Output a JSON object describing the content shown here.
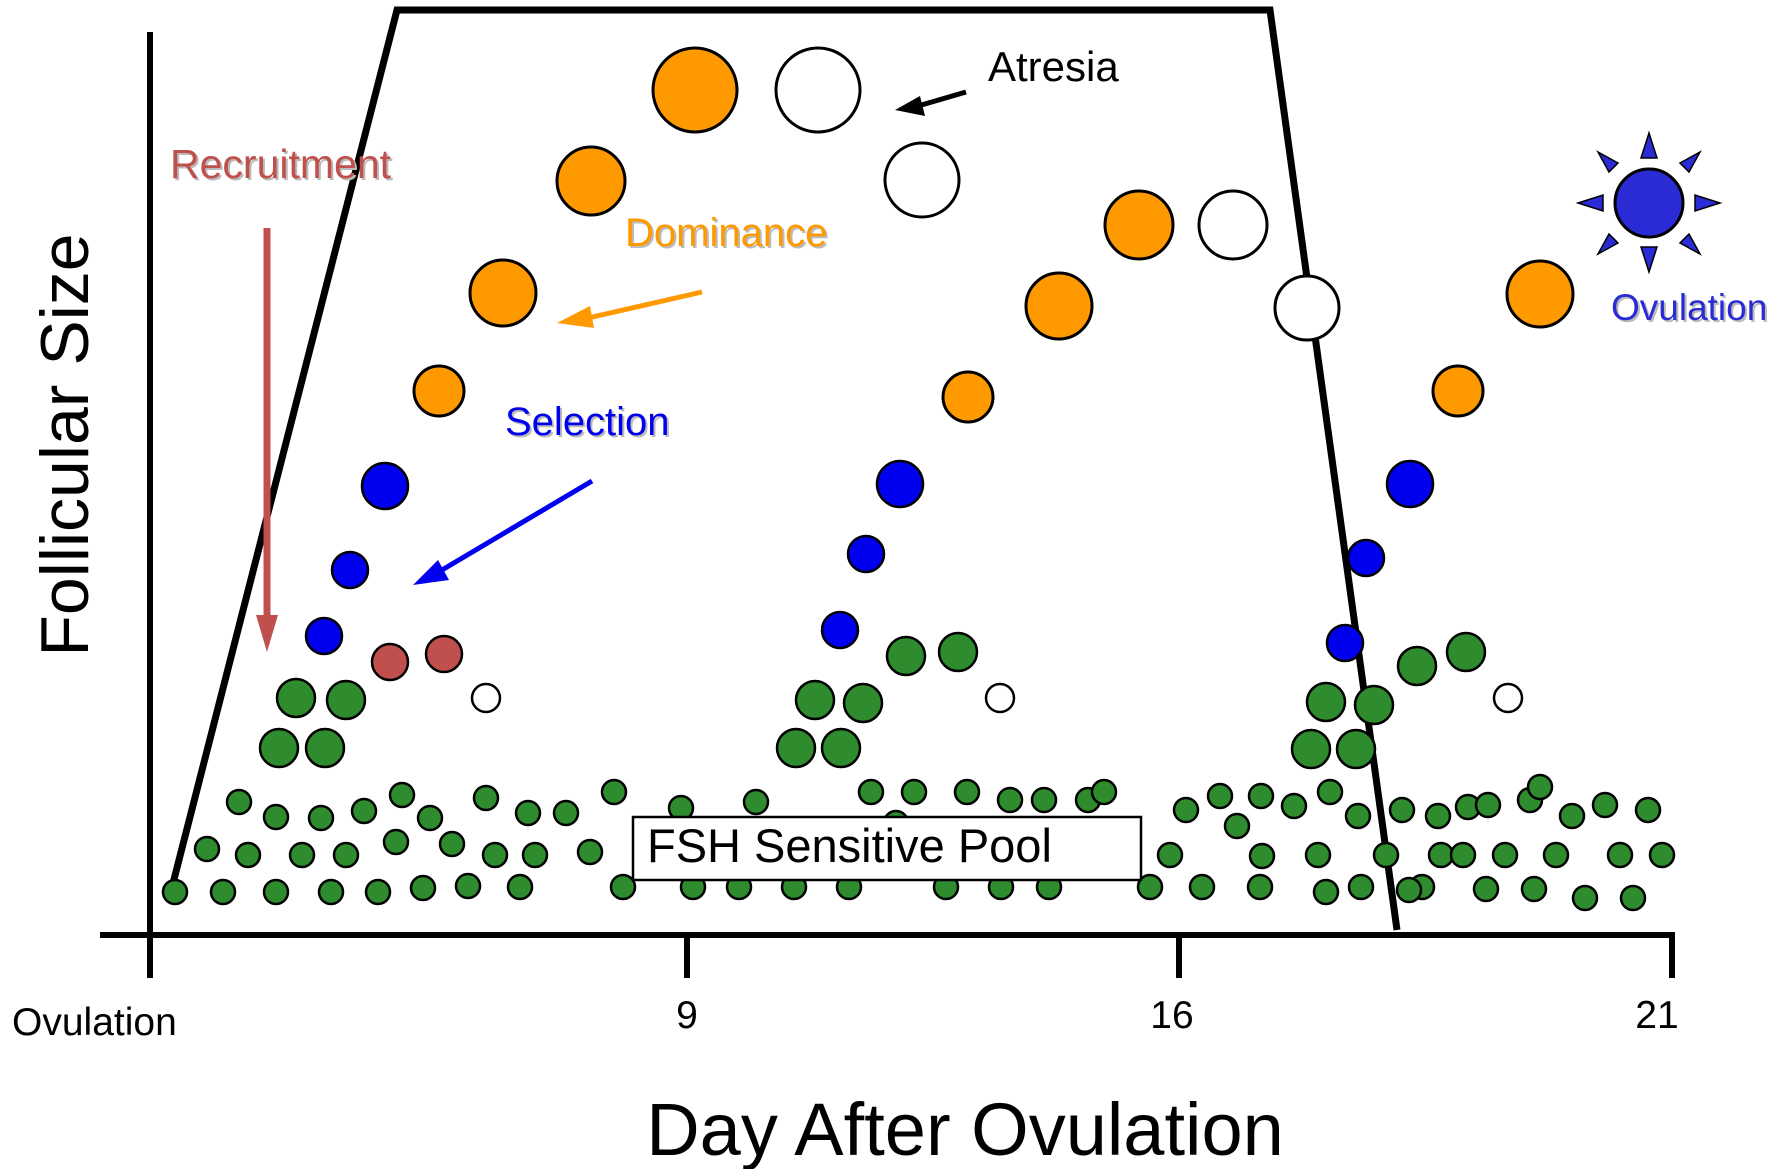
{
  "axes": {
    "y_label": "Follicular Size",
    "x_label": "Day After Ovulation",
    "x_ticks": [
      "Ovulation",
      "9",
      "16",
      "21"
    ]
  },
  "labels": {
    "recruitment": "Recruitment",
    "dominance": "Dominance",
    "selection": "Selection",
    "atresia": "Atresia",
    "ovulation": "Ovulation",
    "pool": "FSH Sensitive Pool"
  },
  "colors": {
    "recruitment": "#c0504d",
    "dominance": "#ff9900",
    "selection": "#0000ee",
    "ovulation": "#2b2bd6",
    "pool": "#2e8b2e",
    "atretic": "#ffffff",
    "outline": "#000000"
  },
  "legend_phases": [
    "recruitment",
    "selection",
    "dominance",
    "atresia",
    "ovulation"
  ]
}
